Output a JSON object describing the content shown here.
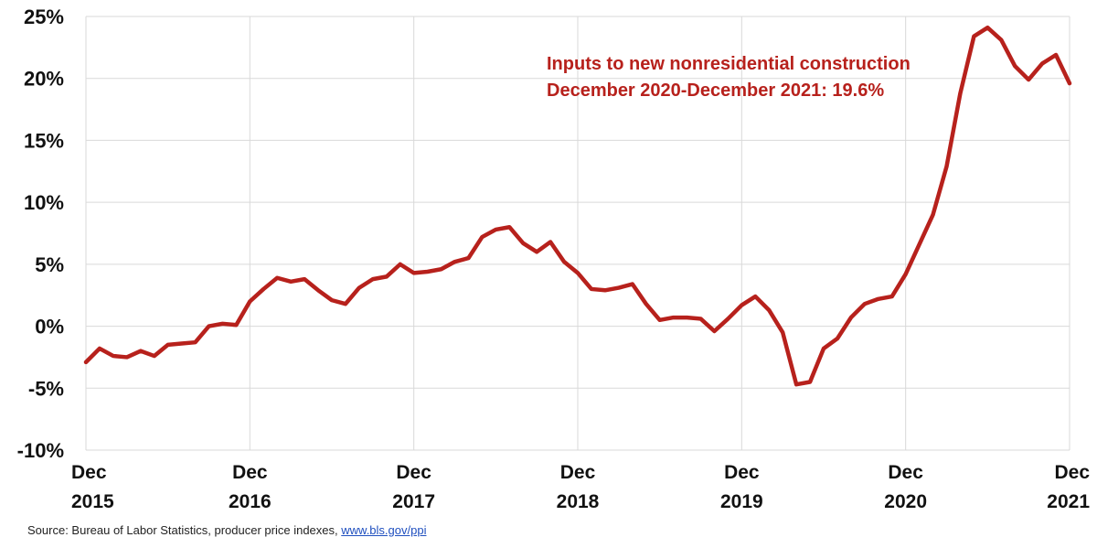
{
  "chart_data": {
    "type": "line",
    "title": "",
    "xlabel": "",
    "ylabel": "",
    "ylim": [
      -10,
      25
    ],
    "yticks": [
      "25%",
      "20%",
      "15%",
      "10%",
      "5%",
      "0%",
      "-5%",
      "-10%"
    ],
    "xtick_labels": [
      {
        "top": "Dec",
        "bottom": "2015"
      },
      {
        "top": "Dec",
        "bottom": "2016"
      },
      {
        "top": "Dec",
        "bottom": "2017"
      },
      {
        "top": "Dec",
        "bottom": "2018"
      },
      {
        "top": "Dec",
        "bottom": "2019"
      },
      {
        "top": "Dec",
        "bottom": "2020"
      },
      {
        "top": "Dec",
        "bottom": "2021"
      }
    ],
    "grid": true,
    "line_color": "#b7211c",
    "series": [
      {
        "values": [
          -2.9,
          -1.8,
          -2.4,
          -2.5,
          -2.0,
          -2.4,
          -1.5,
          -1.4,
          -1.3,
          0.0,
          0.2,
          0.1,
          2.0,
          3.0,
          3.9,
          3.6,
          3.8,
          2.9,
          2.1,
          1.8,
          3.1,
          3.8,
          4.0,
          5.0,
          4.3,
          4.4,
          4.6,
          5.2,
          5.5,
          7.2,
          7.8,
          8.0,
          6.7,
          6.0,
          6.8,
          5.2,
          4.3,
          3.0,
          2.9,
          3.1,
          3.4,
          1.8,
          0.5,
          0.7,
          0.7,
          0.6,
          -0.4,
          0.6,
          1.7,
          2.4,
          1.3,
          -0.5,
          -4.7,
          -4.5,
          -1.8,
          -1.0,
          0.7,
          1.8,
          2.2,
          2.4,
          4.2,
          6.6,
          9.0,
          12.9,
          18.8,
          23.4,
          24.1,
          23.1,
          21.0,
          19.9,
          21.2,
          21.9,
          19.6
        ]
      }
    ],
    "annotation": {
      "line1": "Inputs to new nonresidential construction",
      "line2": "December 2020-December 2021: 19.6%",
      "color": "#b7211c"
    }
  },
  "source": {
    "text": "Source: Bureau of Labor Statistics, producer price indexes, ",
    "link": "www.bls.gov/ppi"
  }
}
